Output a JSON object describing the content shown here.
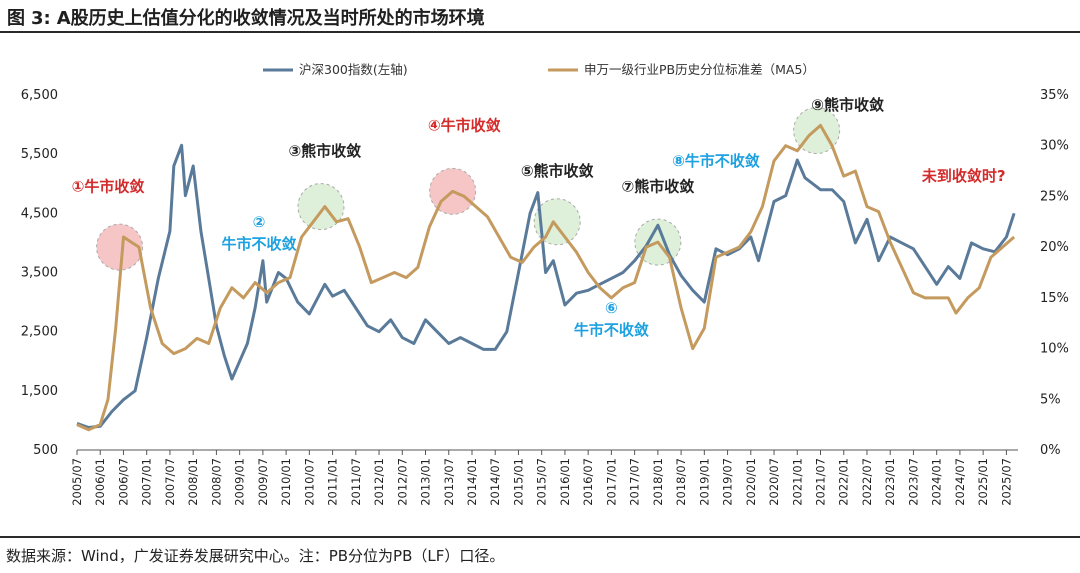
{
  "figure": {
    "label": "图",
    "number": "3:",
    "title": "A股历史上估值分化的收敛情况及当时所处的市场环境"
  },
  "source_note": "数据来源：Wind，广发证券发展研究中心。注：PB分位为PB（LF）口径。",
  "colors": {
    "csi300": "#5a7a9a",
    "pb_std": "#c49a5e",
    "bull_red": "#d42b2b",
    "bull_blue": "#1da1e0",
    "bear_black": "#222222",
    "circle_red": "#f4b8b8",
    "circle_green": "#d6ecd0"
  },
  "chart_data": {
    "type": "line",
    "legend_position": "top-center",
    "legend": [
      "沪深300指数(左轴)",
      "申万一级行业PB历史分位标准差（MA5）"
    ],
    "y_left": {
      "min": 500,
      "max": 6500,
      "ticks": [
        "500",
        "1,500",
        "2,500",
        "3,500",
        "4,500",
        "5,500",
        "6,500"
      ],
      "tick_values": [
        500,
        1500,
        2500,
        3500,
        4500,
        5500,
        6500
      ]
    },
    "y_right": {
      "min": 0,
      "max": 0.35,
      "ticks": [
        "0%",
        "5%",
        "10%",
        "15%",
        "20%",
        "25%",
        "30%",
        "35%"
      ],
      "tick_values": [
        0,
        0.05,
        0.1,
        0.15,
        0.2,
        0.25,
        0.3,
        0.35
      ]
    },
    "x_range": [
      "2005-07",
      "2025-10"
    ],
    "x_ticks": [
      "2005/07",
      "2006/01",
      "2006/07",
      "2007/01",
      "2007/07",
      "2008/01",
      "2008/07",
      "2009/01",
      "2009/07",
      "2010/01",
      "2010/07",
      "2011/01",
      "2011/07",
      "2012/01",
      "2012/07",
      "2013/01",
      "2013/07",
      "2014/01",
      "2014/07",
      "2015/01",
      "2015/07",
      "2016/01",
      "2016/07",
      "2017/01",
      "2017/07",
      "2018/01",
      "2018/07",
      "2019/01",
      "2019/07",
      "2020/01",
      "2020/07",
      "2021/01",
      "2021/07",
      "2022/01",
      "2022/07",
      "2023/01",
      "2023/07",
      "2024/01",
      "2024/07",
      "2025/01",
      "2025/07"
    ],
    "grid": false,
    "series": [
      {
        "name": "沪深300指数(左轴)",
        "axis": "left",
        "points": [
          [
            "2005-07",
            950
          ],
          [
            "2005-10",
            880
          ],
          [
            "2006-01",
            900
          ],
          [
            "2006-04",
            1150
          ],
          [
            "2006-07",
            1350
          ],
          [
            "2006-10",
            1500
          ],
          [
            "2007-01",
            2400
          ],
          [
            "2007-04",
            3400
          ],
          [
            "2007-07",
            4200
          ],
          [
            "2007-08",
            5300
          ],
          [
            "2007-10",
            5650
          ],
          [
            "2007-11",
            4800
          ],
          [
            "2008-01",
            5300
          ],
          [
            "2008-03",
            4200
          ],
          [
            "2008-05",
            3400
          ],
          [
            "2008-07",
            2600
          ],
          [
            "2008-09",
            2100
          ],
          [
            "2008-11",
            1700
          ],
          [
            "2009-01",
            2000
          ],
          [
            "2009-03",
            2300
          ],
          [
            "2009-05",
            2900
          ],
          [
            "2009-07",
            3700
          ],
          [
            "2009-08",
            3000
          ],
          [
            "2009-11",
            3500
          ],
          [
            "2010-01",
            3400
          ],
          [
            "2010-04",
            3000
          ],
          [
            "2010-07",
            2800
          ],
          [
            "2010-11",
            3300
          ],
          [
            "2011-01",
            3100
          ],
          [
            "2011-04",
            3200
          ],
          [
            "2011-07",
            2900
          ],
          [
            "2011-10",
            2600
          ],
          [
            "2012-01",
            2500
          ],
          [
            "2012-04",
            2700
          ],
          [
            "2012-07",
            2400
          ],
          [
            "2012-10",
            2300
          ],
          [
            "2013-01",
            2700
          ],
          [
            "2013-04",
            2500
          ],
          [
            "2013-07",
            2300
          ],
          [
            "2013-10",
            2400
          ],
          [
            "2014-01",
            2300
          ],
          [
            "2014-04",
            2200
          ],
          [
            "2014-07",
            2200
          ],
          [
            "2014-10",
            2500
          ],
          [
            "2015-01",
            3500
          ],
          [
            "2015-04",
            4500
          ],
          [
            "2015-06",
            4850
          ],
          [
            "2015-08",
            3500
          ],
          [
            "2015-10",
            3700
          ],
          [
            "2016-01",
            2950
          ],
          [
            "2016-04",
            3150
          ],
          [
            "2016-07",
            3200
          ],
          [
            "2016-10",
            3300
          ],
          [
            "2017-01",
            3400
          ],
          [
            "2017-04",
            3500
          ],
          [
            "2017-07",
            3700
          ],
          [
            "2017-10",
            3950
          ],
          [
            "2018-01",
            4300
          ],
          [
            "2018-04",
            3800
          ],
          [
            "2018-07",
            3450
          ],
          [
            "2018-10",
            3200
          ],
          [
            "2019-01",
            3000
          ],
          [
            "2019-04",
            3900
          ],
          [
            "2019-07",
            3800
          ],
          [
            "2019-10",
            3900
          ],
          [
            "2020-01",
            4100
          ],
          [
            "2020-03",
            3700
          ],
          [
            "2020-07",
            4700
          ],
          [
            "2020-10",
            4800
          ],
          [
            "2021-01",
            5400
          ],
          [
            "2021-03",
            5100
          ],
          [
            "2021-07",
            4900
          ],
          [
            "2021-10",
            4900
          ],
          [
            "2022-01",
            4700
          ],
          [
            "2022-04",
            4000
          ],
          [
            "2022-07",
            4400
          ],
          [
            "2022-10",
            3700
          ],
          [
            "2023-01",
            4100
          ],
          [
            "2023-04",
            4000
          ],
          [
            "2023-07",
            3900
          ],
          [
            "2023-10",
            3600
          ],
          [
            "2024-01",
            3300
          ],
          [
            "2024-04",
            3600
          ],
          [
            "2024-07",
            3400
          ],
          [
            "2024-10",
            4000
          ],
          [
            "2025-01",
            3900
          ],
          [
            "2025-04",
            3850
          ],
          [
            "2025-07",
            4100
          ],
          [
            "2025-09",
            4500
          ]
        ]
      },
      {
        "name": "申万一级行业PB历史分位标准差（MA5）",
        "axis": "right",
        "points": [
          [
            "2005-07",
            0.025
          ],
          [
            "2005-10",
            0.02
          ],
          [
            "2006-01",
            0.025
          ],
          [
            "2006-03",
            0.05
          ],
          [
            "2006-05",
            0.12
          ],
          [
            "2006-07",
            0.21
          ],
          [
            "2006-09",
            0.205
          ],
          [
            "2006-11",
            0.2
          ],
          [
            "2007-02",
            0.14
          ],
          [
            "2007-05",
            0.105
          ],
          [
            "2007-08",
            0.095
          ],
          [
            "2007-11",
            0.1
          ],
          [
            "2008-02",
            0.11
          ],
          [
            "2008-05",
            0.105
          ],
          [
            "2008-08",
            0.14
          ],
          [
            "2008-11",
            0.16
          ],
          [
            "2009-02",
            0.15
          ],
          [
            "2009-05",
            0.165
          ],
          [
            "2009-08",
            0.155
          ],
          [
            "2009-11",
            0.165
          ],
          [
            "2010-02",
            0.17
          ],
          [
            "2010-05",
            0.21
          ],
          [
            "2010-08",
            0.225
          ],
          [
            "2010-11",
            0.24
          ],
          [
            "2011-02",
            0.225
          ],
          [
            "2011-05",
            0.228
          ],
          [
            "2011-08",
            0.2
          ],
          [
            "2011-11",
            0.165
          ],
          [
            "2012-02",
            0.17
          ],
          [
            "2012-05",
            0.175
          ],
          [
            "2012-08",
            0.17
          ],
          [
            "2012-11",
            0.18
          ],
          [
            "2013-02",
            0.22
          ],
          [
            "2013-05",
            0.245
          ],
          [
            "2013-08",
            0.255
          ],
          [
            "2013-11",
            0.25
          ],
          [
            "2014-02",
            0.24
          ],
          [
            "2014-05",
            0.23
          ],
          [
            "2014-08",
            0.21
          ],
          [
            "2014-11",
            0.19
          ],
          [
            "2015-02",
            0.185
          ],
          [
            "2015-05",
            0.2
          ],
          [
            "2015-08",
            0.21
          ],
          [
            "2015-10",
            0.225
          ],
          [
            "2016-01",
            0.21
          ],
          [
            "2016-04",
            0.195
          ],
          [
            "2016-07",
            0.175
          ],
          [
            "2016-10",
            0.16
          ],
          [
            "2017-01",
            0.15
          ],
          [
            "2017-04",
            0.16
          ],
          [
            "2017-07",
            0.165
          ],
          [
            "2017-10",
            0.2
          ],
          [
            "2018-01",
            0.205
          ],
          [
            "2018-04",
            0.19
          ],
          [
            "2018-07",
            0.14
          ],
          [
            "2018-10",
            0.1
          ],
          [
            "2019-01",
            0.12
          ],
          [
            "2019-04",
            0.19
          ],
          [
            "2019-07",
            0.195
          ],
          [
            "2019-10",
            0.2
          ],
          [
            "2020-01",
            0.215
          ],
          [
            "2020-04",
            0.24
          ],
          [
            "2020-07",
            0.285
          ],
          [
            "2020-10",
            0.3
          ],
          [
            "2021-01",
            0.295
          ],
          [
            "2021-04",
            0.31
          ],
          [
            "2021-07",
            0.32
          ],
          [
            "2021-10",
            0.3
          ],
          [
            "2022-01",
            0.27
          ],
          [
            "2022-04",
            0.275
          ],
          [
            "2022-07",
            0.24
          ],
          [
            "2022-10",
            0.235
          ],
          [
            "2023-01",
            0.205
          ],
          [
            "2023-04",
            0.18
          ],
          [
            "2023-07",
            0.155
          ],
          [
            "2023-10",
            0.15
          ],
          [
            "2024-01",
            0.15
          ],
          [
            "2024-04",
            0.15
          ],
          [
            "2024-06",
            0.135
          ],
          [
            "2024-09",
            0.15
          ],
          [
            "2024-12",
            0.16
          ],
          [
            "2025-03",
            0.19
          ],
          [
            "2025-06",
            0.2
          ],
          [
            "2025-09",
            0.21
          ]
        ]
      }
    ],
    "annotations": [
      {
        "text": "①牛市收敛",
        "color_key": "bull_red",
        "at": [
          "2006-06",
          0.2
        ],
        "label_at": [
          "2006-03",
          0.255
        ],
        "circle": "circle_red"
      },
      {
        "text": "②",
        "text2": "牛市不收敛",
        "color_key": "bull_blue",
        "at": null,
        "label_at": [
          "2009-06",
          0.22
        ]
      },
      {
        "text": "③熊市收敛",
        "color_key": "bear_black",
        "at": [
          "2010-10",
          0.24
        ],
        "label_at": [
          "2010-11",
          0.29
        ],
        "circle": "circle_green"
      },
      {
        "text": "④牛市收敛",
        "color_key": "bull_red",
        "at": [
          "2013-08",
          0.255
        ],
        "label_at": [
          "2013-11",
          0.315
        ],
        "circle": "circle_red"
      },
      {
        "text": "⑤熊市收敛",
        "color_key": "bear_black",
        "at": [
          "2015-11",
          0.225
        ],
        "label_at": [
          "2015-11",
          0.27
        ],
        "circle": "circle_green"
      },
      {
        "text": "⑥",
        "text2": "牛市不收敛",
        "color_key": "bull_blue",
        "at": null,
        "label_at": [
          "2017-01",
          0.135
        ]
      },
      {
        "text": "⑦熊市收敛",
        "color_key": "bear_black",
        "at": [
          "2018-01",
          0.205
        ],
        "label_at": [
          "2018-01",
          0.255
        ],
        "circle": "circle_green"
      },
      {
        "text": "⑧牛市不收敛",
        "color_key": "bull_blue",
        "at": null,
        "label_at": [
          "2019-04",
          0.28
        ]
      },
      {
        "text": "⑨熊市收敛",
        "color_key": "bear_black",
        "at": [
          "2021-06",
          0.315
        ],
        "label_at": [
          "2022-02",
          0.335
        ],
        "circle": "circle_green"
      },
      {
        "text": "未到收敛时?",
        "color_key": "bull_red",
        "at": null,
        "label_at": [
          "2024-08",
          0.265
        ]
      }
    ]
  }
}
